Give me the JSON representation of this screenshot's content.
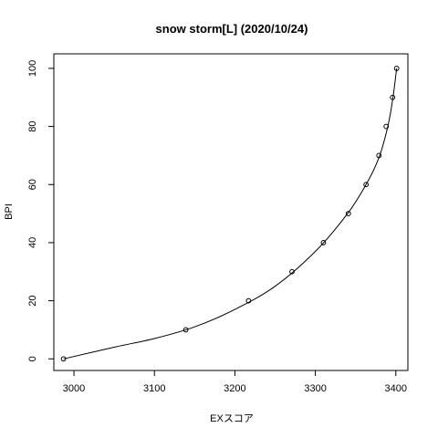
{
  "chart_data": {
    "type": "scatter",
    "title": "snow storm[L] (2020/10/24)",
    "xlabel": "EXスコア",
    "ylabel": "BPI",
    "xlim": [
      2975,
      3415
    ],
    "ylim": [
      -4,
      105
    ],
    "x_ticks": [
      3000,
      3100,
      3200,
      3300,
      3400
    ],
    "y_ticks": [
      0,
      20,
      40,
      60,
      80,
      100
    ],
    "grid": false,
    "legend": "none",
    "points": [
      {
        "x": 2987,
        "y": 0
      },
      {
        "x": 3139,
        "y": 10
      },
      {
        "x": 3217,
        "y": 20
      },
      {
        "x": 3271,
        "y": 30
      },
      {
        "x": 3310,
        "y": 40
      },
      {
        "x": 3341,
        "y": 50
      },
      {
        "x": 3363,
        "y": 60
      },
      {
        "x": 3379,
        "y": 70
      },
      {
        "x": 3388,
        "y": 80
      },
      {
        "x": 3396,
        "y": 90
      },
      {
        "x": 3401,
        "y": 100
      }
    ],
    "fit_curve": [
      {
        "x": 2987,
        "y": 0
      },
      {
        "x": 3050,
        "y": 4
      },
      {
        "x": 3100,
        "y": 7
      },
      {
        "x": 3150,
        "y": 11
      },
      {
        "x": 3200,
        "y": 17
      },
      {
        "x": 3250,
        "y": 25
      },
      {
        "x": 3300,
        "y": 37
      },
      {
        "x": 3340,
        "y": 50
      },
      {
        "x": 3365,
        "y": 61
      },
      {
        "x": 3380,
        "y": 70
      },
      {
        "x": 3390,
        "y": 80
      },
      {
        "x": 3396,
        "y": 89
      },
      {
        "x": 3401,
        "y": 100
      }
    ]
  }
}
